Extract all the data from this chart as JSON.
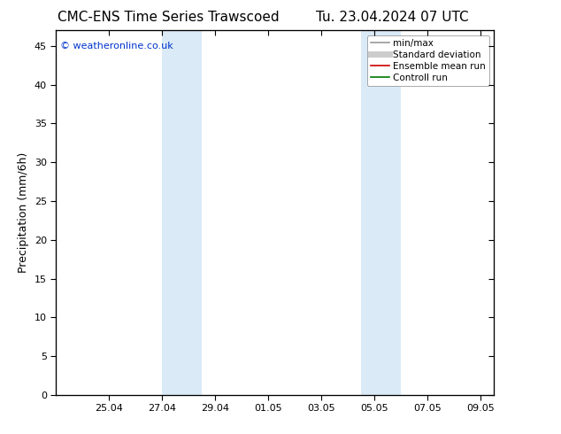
{
  "title": "CMC-ENS Time Series Trawscoed",
  "title_right": "Tu. 23.04.2024 07 UTC",
  "ylabel": "Precipitation (mm/6h)",
  "watermark": "© weatheronline.co.uk",
  "background_color": "#ffffff",
  "plot_bg_color": "#ffffff",
  "shade_color": "#daeaf7",
  "ylim": [
    0,
    47
  ],
  "yticks": [
    0,
    5,
    10,
    15,
    20,
    25,
    30,
    35,
    40,
    45
  ],
  "xtick_labels": [
    "25.04",
    "27.04",
    "29.04",
    "01.05",
    "03.05",
    "05.05",
    "07.05",
    "09.05"
  ],
  "shaded_regions_april": [
    [
      27.0,
      28.5
    ]
  ],
  "shaded_regions_may": [
    [
      4.5,
      6.0
    ]
  ],
  "legend_entries": [
    {
      "label": "min/max",
      "color": "#999999",
      "lw": 1.2
    },
    {
      "label": "Standard deviation",
      "color": "#cccccc",
      "lw": 5
    },
    {
      "label": "Ensemble mean run",
      "color": "#cc0000",
      "lw": 1.2
    },
    {
      "label": "Controll run",
      "color": "#007700",
      "lw": 1.2
    }
  ],
  "font_size_title": 11,
  "font_size_axis": 9,
  "font_size_tick": 8,
  "font_size_legend": 7.5,
  "font_size_watermark": 8
}
